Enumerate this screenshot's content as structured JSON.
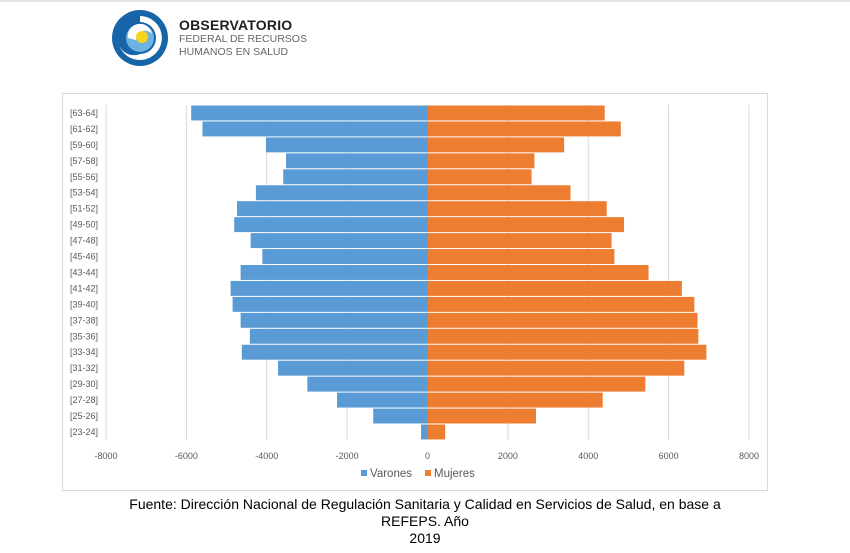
{
  "logo": {
    "title": "OBSERVATORIO",
    "subtitle_1": "FEDERAL DE RECURSOS",
    "subtitle_2": "HUMANOS EN SALUD"
  },
  "chart_data": {
    "type": "bar",
    "orientation": "horizontal",
    "stacked_pyramid": true,
    "categories": [
      "[63-64]",
      "[61-62]",
      "[59-60]",
      "[57-58]",
      "[55-56]",
      "[53-54]",
      "[51-52]",
      "[49-50]",
      "[47-48]",
      "[45-46]",
      "[43-44]",
      "[41-42]",
      "[39-40]",
      "[37-38]",
      "[35-36]",
      "[33-34]",
      "[31-32]",
      "[29-30]",
      "[27-28]",
      "[25-26]",
      "[23-24]"
    ],
    "series": [
      {
        "name": "Varones",
        "color": "#5b9bd5",
        "values": [
          -5880,
          -5600,
          -4020,
          -3520,
          -3590,
          -4270,
          -4740,
          -4810,
          -4400,
          -4110,
          -4650,
          -4900,
          -4850,
          -4650,
          -4420,
          -4620,
          -3720,
          -2990,
          -2250,
          -1350,
          -160
        ]
      },
      {
        "name": "Mujeres",
        "color": "#ed7d31",
        "values": [
          4410,
          4810,
          3400,
          2660,
          2590,
          3560,
          4460,
          4890,
          4580,
          4650,
          5500,
          6330,
          6640,
          6720,
          6740,
          6940,
          6390,
          5420,
          4360,
          2700,
          440
        ]
      }
    ],
    "xlim": [
      -8000,
      8000
    ],
    "xticks": [
      "-8000",
      "-6000",
      "-4000",
      "-2000",
      "0",
      "2000",
      "4000",
      "6000",
      "8000"
    ],
    "grid": "vertical",
    "legend": "bottom",
    "title": "",
    "xlabel": "",
    "ylabel": ""
  },
  "caption": {
    "line_1": "Fuente: Dirección Nacional de Regulación Sanitaria y Calidad en Servicios de Salud, en base a REFEPS. Año",
    "line_2": "2019"
  }
}
